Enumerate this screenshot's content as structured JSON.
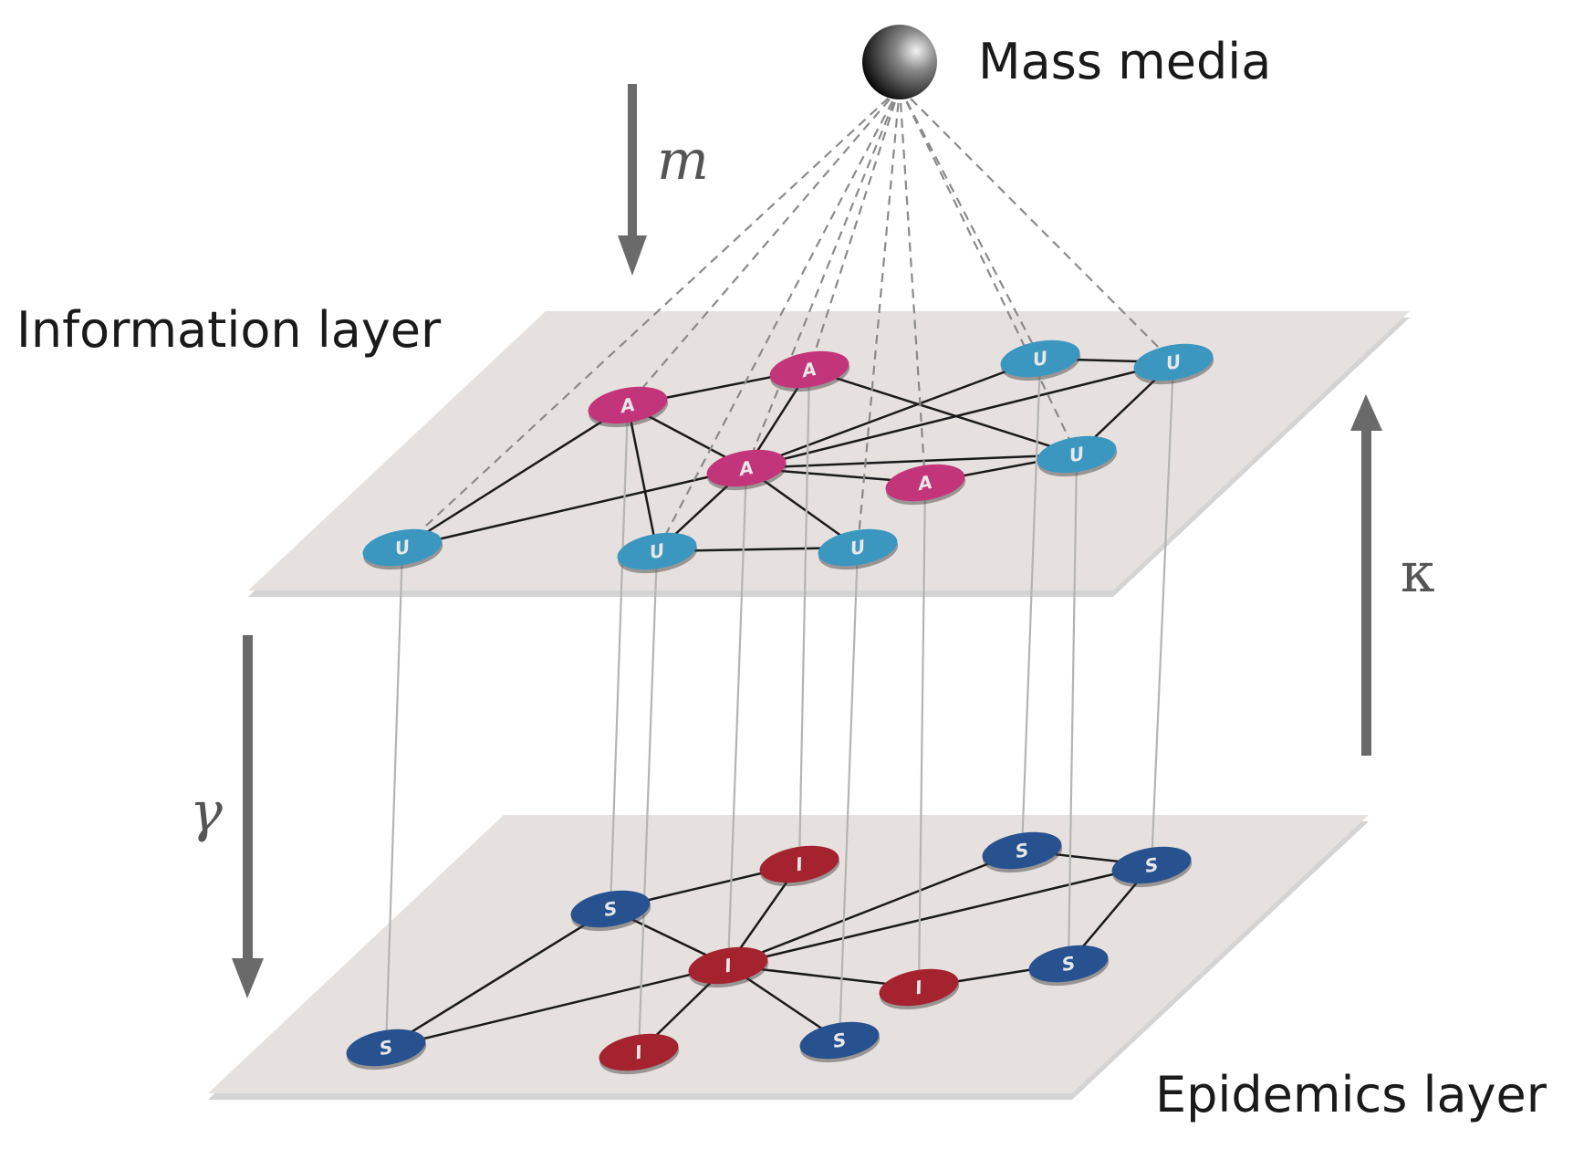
{
  "labels": {
    "mass_media": "Mass media",
    "information_layer": "Information layer",
    "epidemics_layer": "Epidemics layer",
    "m": "m",
    "kappa": "κ",
    "gamma": "γ"
  },
  "colors": {
    "aware": "#c2357a",
    "unaware": "#3b97c0",
    "susceptible": "#27528f",
    "infected": "#a4232f",
    "plane": "#e6e1de",
    "arrow": "#6a6a6a"
  },
  "info_nodes": [
    {
      "id": "n1",
      "state": "A"
    },
    {
      "id": "n2",
      "state": "A"
    },
    {
      "id": "n3",
      "state": "A"
    },
    {
      "id": "n4",
      "state": "A"
    },
    {
      "id": "n5",
      "state": "U"
    },
    {
      "id": "n6",
      "state": "U"
    },
    {
      "id": "n7",
      "state": "U"
    },
    {
      "id": "n8",
      "state": "U"
    },
    {
      "id": "n9",
      "state": "U"
    },
    {
      "id": "n10",
      "state": "U"
    }
  ],
  "epi_nodes": [
    {
      "id": "n1",
      "state": "S"
    },
    {
      "id": "n2",
      "state": "I"
    },
    {
      "id": "n3",
      "state": "I"
    },
    {
      "id": "n4",
      "state": "I"
    },
    {
      "id": "n5",
      "state": "S"
    },
    {
      "id": "n6",
      "state": "I"
    },
    {
      "id": "n7",
      "state": "S"
    },
    {
      "id": "n8",
      "state": "S"
    },
    {
      "id": "n9",
      "state": "S"
    },
    {
      "id": "n10",
      "state": "S"
    }
  ]
}
